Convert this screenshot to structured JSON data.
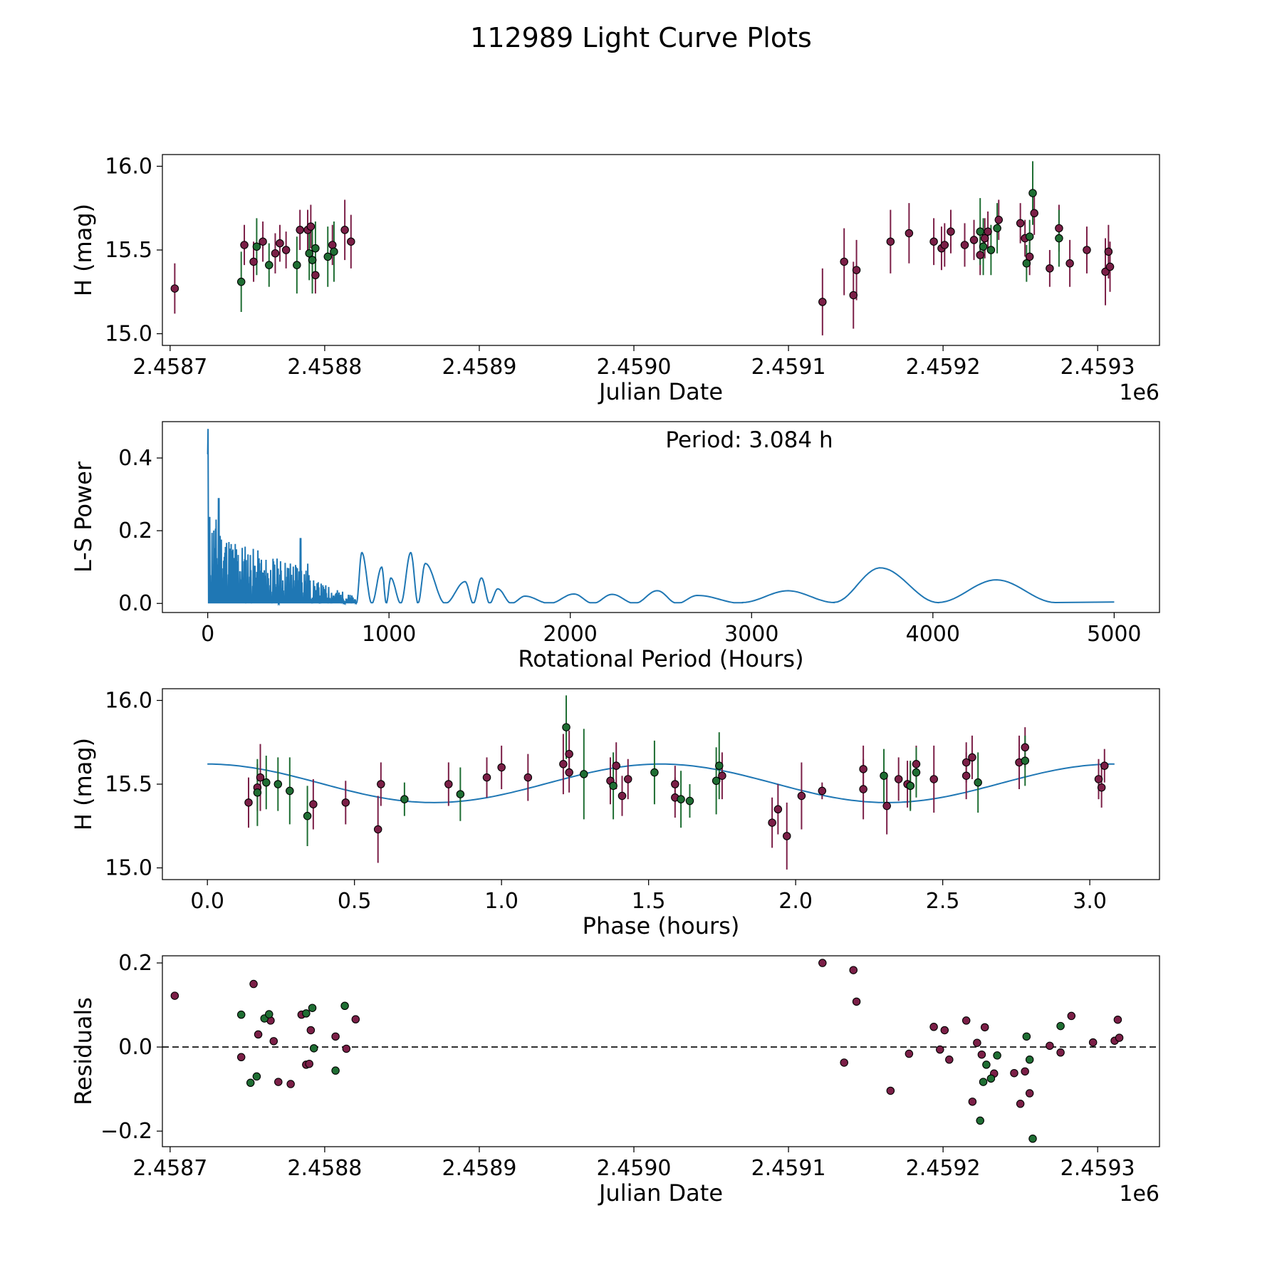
{
  "title": "112989 Light Curve Plots",
  "colors": {
    "series_a": "#7b1f47",
    "series_b": "#1f6e33",
    "curve": "#1f77b4"
  },
  "chart_data": [
    {
      "name": "light-curve",
      "type": "scatter",
      "xlabel": "Julian Date",
      "ylabel": "H (mag)",
      "offset_label": "1e6",
      "xlim": [
        2458695,
        2459340
      ],
      "ylim": [
        14.93,
        16.07
      ],
      "xticks": [
        2458700,
        2458800,
        2458900,
        2459000,
        2459100,
        2459200,
        2459300
      ],
      "xtick_labels": [
        "2.4587",
        "2.4588",
        "2.4589",
        "2.4590",
        "2.4591",
        "2.4592",
        "2.4593"
      ],
      "yticks": [
        15.0,
        15.5,
        16.0
      ],
      "ytick_labels": [
        "15.0",
        "15.5",
        "16.0"
      ],
      "series": [
        {
          "name": "A",
          "color": "#7b1f47",
          "points": [
            [
              2458703,
              15.27,
              0.15
            ],
            [
              2458748,
              15.53,
              0.12
            ],
            [
              2458754,
              15.43,
              0.12
            ],
            [
              2458760,
              15.55,
              0.12
            ],
            [
              2458768,
              15.48,
              0.12
            ],
            [
              2458771,
              15.54,
              0.11
            ],
            [
              2458775,
              15.5,
              0.11
            ],
            [
              2458784,
              15.62,
              0.12
            ],
            [
              2458789,
              15.62,
              0.12
            ],
            [
              2458791,
              15.64,
              0.13
            ],
            [
              2458792,
              15.44,
              0.12
            ],
            [
              2458794,
              15.35,
              0.11
            ],
            [
              2458805,
              15.53,
              0.12
            ],
            [
              2458813,
              15.62,
              0.18
            ],
            [
              2458817,
              15.55,
              0.16
            ],
            [
              2459122,
              15.19,
              0.2
            ],
            [
              2459136,
              15.43,
              0.2
            ],
            [
              2459142,
              15.23,
              0.2
            ],
            [
              2459144,
              15.38,
              0.18
            ],
            [
              2459166,
              15.55,
              0.19
            ],
            [
              2459178,
              15.6,
              0.18
            ],
            [
              2459194,
              15.55,
              0.14
            ],
            [
              2459199,
              15.51,
              0.13
            ],
            [
              2459201,
              15.53,
              0.13
            ],
            [
              2459205,
              15.61,
              0.13
            ],
            [
              2459214,
              15.53,
              0.13
            ],
            [
              2459220,
              15.56,
              0.12
            ],
            [
              2459224,
              15.47,
              0.12
            ],
            [
              2459227,
              15.57,
              0.12
            ],
            [
              2459229,
              15.61,
              0.12
            ],
            [
              2459236,
              15.68,
              0.12
            ],
            [
              2459250,
              15.66,
              0.12
            ],
            [
              2459253,
              15.57,
              0.11
            ],
            [
              2459256,
              15.46,
              0.11
            ],
            [
              2459259,
              15.72,
              0.13
            ],
            [
              2459269,
              15.39,
              0.11
            ],
            [
              2459275,
              15.63,
              0.14
            ],
            [
              2459282,
              15.42,
              0.14
            ],
            [
              2459293,
              15.5,
              0.14
            ],
            [
              2459305,
              15.37,
              0.2
            ],
            [
              2459308,
              15.4,
              0.15
            ],
            [
              2459307,
              15.49,
              0.16
            ]
          ]
        },
        {
          "name": "B",
          "color": "#1f6e33",
          "points": [
            [
              2458746,
              15.31,
              0.18
            ],
            [
              2458756,
              15.52,
              0.17
            ],
            [
              2458764,
              15.41,
              0.13
            ],
            [
              2458782,
              15.41,
              0.17
            ],
            [
              2458790,
              15.48,
              0.16
            ],
            [
              2458792,
              15.44,
              0.2
            ],
            [
              2458794,
              15.51,
              0.16
            ],
            [
              2458802,
              15.46,
              0.18
            ],
            [
              2458806,
              15.49,
              0.18
            ],
            [
              2459224,
              15.61,
              0.2
            ],
            [
              2459226,
              15.52,
              0.17
            ],
            [
              2459231,
              15.5,
              0.15
            ],
            [
              2459235,
              15.63,
              0.15
            ],
            [
              2459254,
              15.42,
              0.11
            ],
            [
              2459256,
              15.58,
              0.1
            ],
            [
              2459258,
              15.84,
              0.19
            ],
            [
              2459275,
              15.57,
              0.17
            ]
          ]
        }
      ]
    },
    {
      "name": "periodogram",
      "type": "line",
      "xlabel": "Rotational Period (Hours)",
      "ylabel": "L-S Power",
      "annotation": "Period: 3.084 h",
      "xlim": [
        -250,
        5250
      ],
      "ylim": [
        -0.025,
        0.5
      ],
      "xticks": [
        0,
        1000,
        2000,
        3000,
        4000,
        5000
      ],
      "xtick_labels": [
        "0",
        "1000",
        "2000",
        "3000",
        "4000",
        "5000"
      ],
      "yticks": [
        0.0,
        0.2,
        0.4
      ],
      "ytick_labels": [
        "0.0",
        "0.2",
        "0.4"
      ],
      "peak_power": 0.48,
      "peaks": [
        [
          850,
          0.14
        ],
        [
          960,
          0.1
        ],
        [
          1010,
          0.07
        ],
        [
          1120,
          0.14
        ],
        [
          1200,
          0.11
        ],
        [
          1420,
          0.06
        ],
        [
          1510,
          0.07
        ],
        [
          1600,
          0.04
        ],
        [
          1750,
          0.02
        ],
        [
          2020,
          0.026
        ],
        [
          2230,
          0.025
        ],
        [
          2480,
          0.035
        ],
        [
          2700,
          0.022
        ],
        [
          3200,
          0.03
        ],
        [
          3710,
          0.093
        ],
        [
          4350,
          0.06
        ]
      ],
      "period_max": 5000
    },
    {
      "name": "phase-folded",
      "type": "scatter",
      "xlabel": "Phase (hours)",
      "ylabel": "H (mag)",
      "xlim": [
        -0.153,
        3.237
      ],
      "ylim": [
        14.93,
        16.07
      ],
      "xticks": [
        0.0,
        0.5,
        1.0,
        1.5,
        2.0,
        2.5,
        3.0
      ],
      "xtick_labels": [
        "0.0",
        "0.5",
        "1.0",
        "1.5",
        "2.0",
        "2.5",
        "3.0"
      ],
      "yticks": [
        15.0,
        15.5,
        16.0
      ],
      "ytick_labels": [
        "15.0",
        "15.5",
        "16.0"
      ],
      "model": {
        "period": 3.084,
        "mean": 15.505,
        "amplitude": 0.115,
        "phase_shift": 0.8
      },
      "series": [
        {
          "name": "A",
          "color": "#7b1f47",
          "points": [
            [
              0.14,
              15.39,
              0.15
            ],
            [
              0.17,
              15.48,
              0.14
            ],
            [
              0.18,
              15.54,
              0.2
            ],
            [
              0.36,
              15.38,
              0.15
            ],
            [
              0.47,
              15.39,
              0.13
            ],
            [
              0.58,
              15.23,
              0.2
            ],
            [
              0.59,
              15.5,
              0.13
            ],
            [
              0.82,
              15.5,
              0.13
            ],
            [
              0.95,
              15.54,
              0.12
            ],
            [
              1.0,
              15.6,
              0.13
            ],
            [
              1.09,
              15.54,
              0.14
            ],
            [
              1.21,
              15.62,
              0.18
            ],
            [
              1.23,
              15.57,
              0.12
            ],
            [
              1.23,
              15.68,
              0.14
            ],
            [
              1.37,
              15.52,
              0.14
            ],
            [
              1.39,
              15.61,
              0.14
            ],
            [
              1.41,
              15.43,
              0.12
            ],
            [
              1.43,
              15.53,
              0.12
            ],
            [
              1.59,
              15.5,
              0.11
            ],
            [
              1.59,
              15.42,
              0.12
            ],
            [
              1.75,
              15.55,
              0.14
            ],
            [
              1.92,
              15.27,
              0.15
            ],
            [
              1.94,
              15.35,
              0.15
            ],
            [
              1.97,
              15.19,
              0.2
            ],
            [
              2.02,
              15.43,
              0.2
            ],
            [
              2.09,
              15.46,
              0.05
            ],
            [
              2.23,
              15.59,
              0.14
            ],
            [
              2.23,
              15.47,
              0.18
            ],
            [
              2.31,
              15.37,
              0.17
            ],
            [
              2.35,
              15.53,
              0.13
            ],
            [
              2.38,
              15.5,
              0.14
            ],
            [
              2.39,
              15.49,
              0.14
            ],
            [
              2.41,
              15.62,
              0.11
            ],
            [
              2.47,
              15.53,
              0.2
            ],
            [
              2.58,
              15.63,
              0.12
            ],
            [
              2.58,
              15.55,
              0.14
            ],
            [
              2.6,
              15.66,
              0.13
            ],
            [
              2.76,
              15.63,
              0.16
            ],
            [
              2.78,
              15.72,
              0.12
            ],
            [
              3.03,
              15.53,
              0.12
            ],
            [
              3.04,
              15.48,
              0.12
            ],
            [
              3.05,
              15.61,
              0.1
            ]
          ]
        },
        {
          "name": "B",
          "color": "#1f6e33",
          "points": [
            [
              0.17,
              15.45,
              0.2
            ],
            [
              0.2,
              15.51,
              0.16
            ],
            [
              0.24,
              15.5,
              0.16
            ],
            [
              0.28,
              15.46,
              0.2
            ],
            [
              0.34,
              15.31,
              0.18
            ],
            [
              0.67,
              15.41,
              0.1
            ],
            [
              0.86,
              15.44,
              0.16
            ],
            [
              1.22,
              15.84,
              0.19
            ],
            [
              1.28,
              15.56,
              0.27
            ],
            [
              1.38,
              15.49,
              0.2
            ],
            [
              1.52,
              15.57,
              0.19
            ],
            [
              1.61,
              15.41,
              0.17
            ],
            [
              1.64,
              15.4,
              0.1
            ],
            [
              1.73,
              15.52,
              0.2
            ],
            [
              1.74,
              15.61,
              0.2
            ],
            [
              2.3,
              15.55,
              0.16
            ],
            [
              2.39,
              15.49,
              0.15
            ],
            [
              2.41,
              15.57,
              0.15
            ],
            [
              2.62,
              15.51,
              0.18
            ],
            [
              2.78,
              15.64,
              0.15
            ]
          ]
        }
      ]
    },
    {
      "name": "residuals",
      "type": "scatter",
      "xlabel": "Julian Date",
      "ylabel": "Residuals",
      "offset_label": "1e6",
      "xlim": [
        2458695,
        2459340
      ],
      "ylim": [
        -0.237,
        0.217
      ],
      "xticks": [
        2458700,
        2458800,
        2458900,
        2459000,
        2459100,
        2459200,
        2459300
      ],
      "xtick_labels": [
        "2.4587",
        "2.4588",
        "2.4589",
        "2.4590",
        "2.4591",
        "2.4592",
        "2.4593"
      ],
      "yticks": [
        -0.2,
        0.0,
        0.2
      ],
      "ytick_labels": [
        "−0.2",
        "0.0",
        "0.2"
      ],
      "zero_line": 0,
      "series": [
        {
          "name": "A",
          "color": "#7b1f47",
          "points": [
            [
              2458703,
              0.122
            ],
            [
              2458746,
              -0.024
            ],
            [
              2458754,
              0.15
            ],
            [
              2458757,
              0.03
            ],
            [
              2458765,
              0.063
            ],
            [
              2458767,
              0.014
            ],
            [
              2458770,
              -0.083
            ],
            [
              2458778,
              -0.088
            ],
            [
              2458785,
              0.077
            ],
            [
              2458788,
              -0.042
            ],
            [
              2458790,
              -0.04
            ],
            [
              2458791,
              0.04
            ],
            [
              2458807,
              0.025
            ],
            [
              2458814,
              -0.004
            ],
            [
              2458820,
              0.066
            ],
            [
              2459122,
              0.2
            ],
            [
              2459136,
              -0.037
            ],
            [
              2459142,
              0.183
            ],
            [
              2459144,
              0.108
            ],
            [
              2459166,
              -0.104
            ],
            [
              2459178,
              -0.016
            ],
            [
              2459194,
              0.048
            ],
            [
              2459198,
              -0.006
            ],
            [
              2459201,
              0.04
            ],
            [
              2459204,
              -0.03
            ],
            [
              2459215,
              0.063
            ],
            [
              2459219,
              -0.13
            ],
            [
              2459222,
              0.01
            ],
            [
              2459225,
              -0.018
            ],
            [
              2459227,
              0.047
            ],
            [
              2459233,
              -0.063
            ],
            [
              2459246,
              -0.062
            ],
            [
              2459250,
              -0.135
            ],
            [
              2459253,
              -0.058
            ],
            [
              2459256,
              -0.11
            ],
            [
              2459269,
              0.003
            ],
            [
              2459276,
              -0.013
            ],
            [
              2459283,
              0.074
            ],
            [
              2459297,
              0.011
            ],
            [
              2459311,
              0.015
            ],
            [
              2459313,
              0.065
            ],
            [
              2459314,
              0.022
            ]
          ]
        },
        {
          "name": "B",
          "color": "#1f6e33",
          "points": [
            [
              2458746,
              0.077
            ],
            [
              2458752,
              -0.085
            ],
            [
              2458756,
              -0.07
            ],
            [
              2458761,
              0.068
            ],
            [
              2458764,
              0.078
            ],
            [
              2458788,
              0.08
            ],
            [
              2458792,
              0.093
            ],
            [
              2458793,
              -0.003
            ],
            [
              2458807,
              -0.056
            ],
            [
              2458813,
              0.098
            ],
            [
              2459224,
              -0.175
            ],
            [
              2459226,
              -0.083
            ],
            [
              2459228,
              -0.042
            ],
            [
              2459231,
              -0.075
            ],
            [
              2459235,
              -0.02
            ],
            [
              2459254,
              0.025
            ],
            [
              2459256,
              -0.03
            ],
            [
              2459258,
              -0.218
            ],
            [
              2459276,
              0.05
            ]
          ]
        }
      ]
    }
  ]
}
